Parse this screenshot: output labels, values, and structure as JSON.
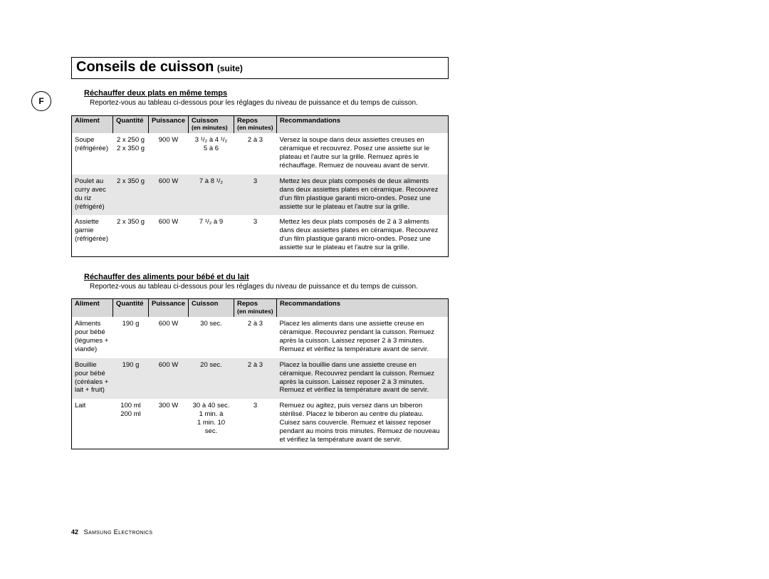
{
  "langMarker": "F",
  "title": {
    "main": "Conseils de cuisson",
    "suite": "(suite)"
  },
  "section1": {
    "heading": "Réchauffer deux plats en même temps",
    "intro": "Reportez-vous au tableau ci-dessous pour les réglages du niveau de puissance et du temps de cuisson.",
    "columns": {
      "aliment": "Aliment",
      "quantite": "Quantité",
      "puissance": "Puissance",
      "cuisson": "Cuisson",
      "cuisson_sub": "(en minutes)",
      "repos": "Repos",
      "repos_sub": "(en minutes)",
      "reco": "Recommandations"
    },
    "rows": [
      {
        "aliment": "Soupe\n(réfrigérée)",
        "quantite": "2 x 250 g\n2 x 350 g",
        "puissance": "900 W",
        "cuisson": "3 ¹/₂ à 4 ¹/₂\n5 à 6",
        "repos": "2 à 3",
        "reco": "Versez la soupe dans deux assiettes creuses en céramique et recouvrez. Posez une assiette sur le plateau et l'autre sur la grille. Remuez après le réchauffage. Remuez de nouveau avant de servir."
      },
      {
        "aliment": "Poulet au curry avec du riz (réfrigéré)",
        "quantite": "2 x 350 g",
        "puissance": "600 W",
        "cuisson": "7 à 8 ¹/₂",
        "repos": "3",
        "reco": "Mettez les deux plats composés de deux aliments dans deux assiettes plates en céramique. Recouvrez d'un film plastique garanti micro-ondes. Posez une assiette sur le plateau et l'autre sur la grille."
      },
      {
        "aliment": "Assiette garnie (réfrigérée)",
        "quantite": "2 x 350 g",
        "puissance": "600 W",
        "cuisson": "7 ¹/₂ à 9",
        "repos": "3",
        "reco": "Mettez les deux plats composés de 2 à 3 aliments dans deux assiettes plates en céramique. Recouvrez d'un film plastique garanti micro-ondes. Posez une assiette sur le plateau et l'autre sur la grille."
      }
    ]
  },
  "section2": {
    "heading": "Réchauffer des aliments pour bébé et du lait",
    "intro": "Reportez-vous au tableau ci-dessous pour les réglages du niveau de puissance et du temps de cuisson.",
    "columns": {
      "aliment": "Aliment",
      "quantite": "Quantité",
      "puissance": "Puissance",
      "cuisson": "Cuisson",
      "repos": "Repos",
      "repos_sub": "(en minutes)",
      "reco": "Recommandations"
    },
    "rows": [
      {
        "aliment": "Aliments pour bébé (légumes + viande)",
        "quantite": "190 g",
        "puissance": "600 W",
        "cuisson": "30 sec.",
        "repos": "2 à 3",
        "reco": "Placez les aliments dans une assiette creuse en céramique. Recouvrez pendant la cuisson. Remuez après la cuisson. Laissez reposer 2 à 3 minutes. Remuez et vérifiez la température avant de servir."
      },
      {
        "aliment": "Bouillie pour bébé (céréales + lait + fruit)",
        "quantite": "190 g",
        "puissance": "600 W",
        "cuisson": "20 sec.",
        "repos": "2 à 3",
        "reco": "Placez la bouillie dans une assiette creuse en céramique. Recouvrez pendant la cuisson. Remuez après la cuisson. Laissez reposer 2 à 3 minutes. Remuez et vérifiez la température avant de servir."
      },
      {
        "aliment": "Lait",
        "quantite": "100 ml\n200 ml",
        "puissance": "300 W",
        "cuisson": "30 à 40 sec.\n1 min. à\n1 min. 10 sec.",
        "repos": "3",
        "reco": "Remuez ou agitez, puis versez dans un biberon stérilisé. Placez le biberon au centre du plateau. Cuisez sans couvercle. Remuez et laissez reposer pendant au moins trois minutes. Remuez de nouveau et vérifiez la température avant de servir."
      }
    ]
  },
  "footer": {
    "page": "42",
    "brand": "Samsung Electronics"
  }
}
